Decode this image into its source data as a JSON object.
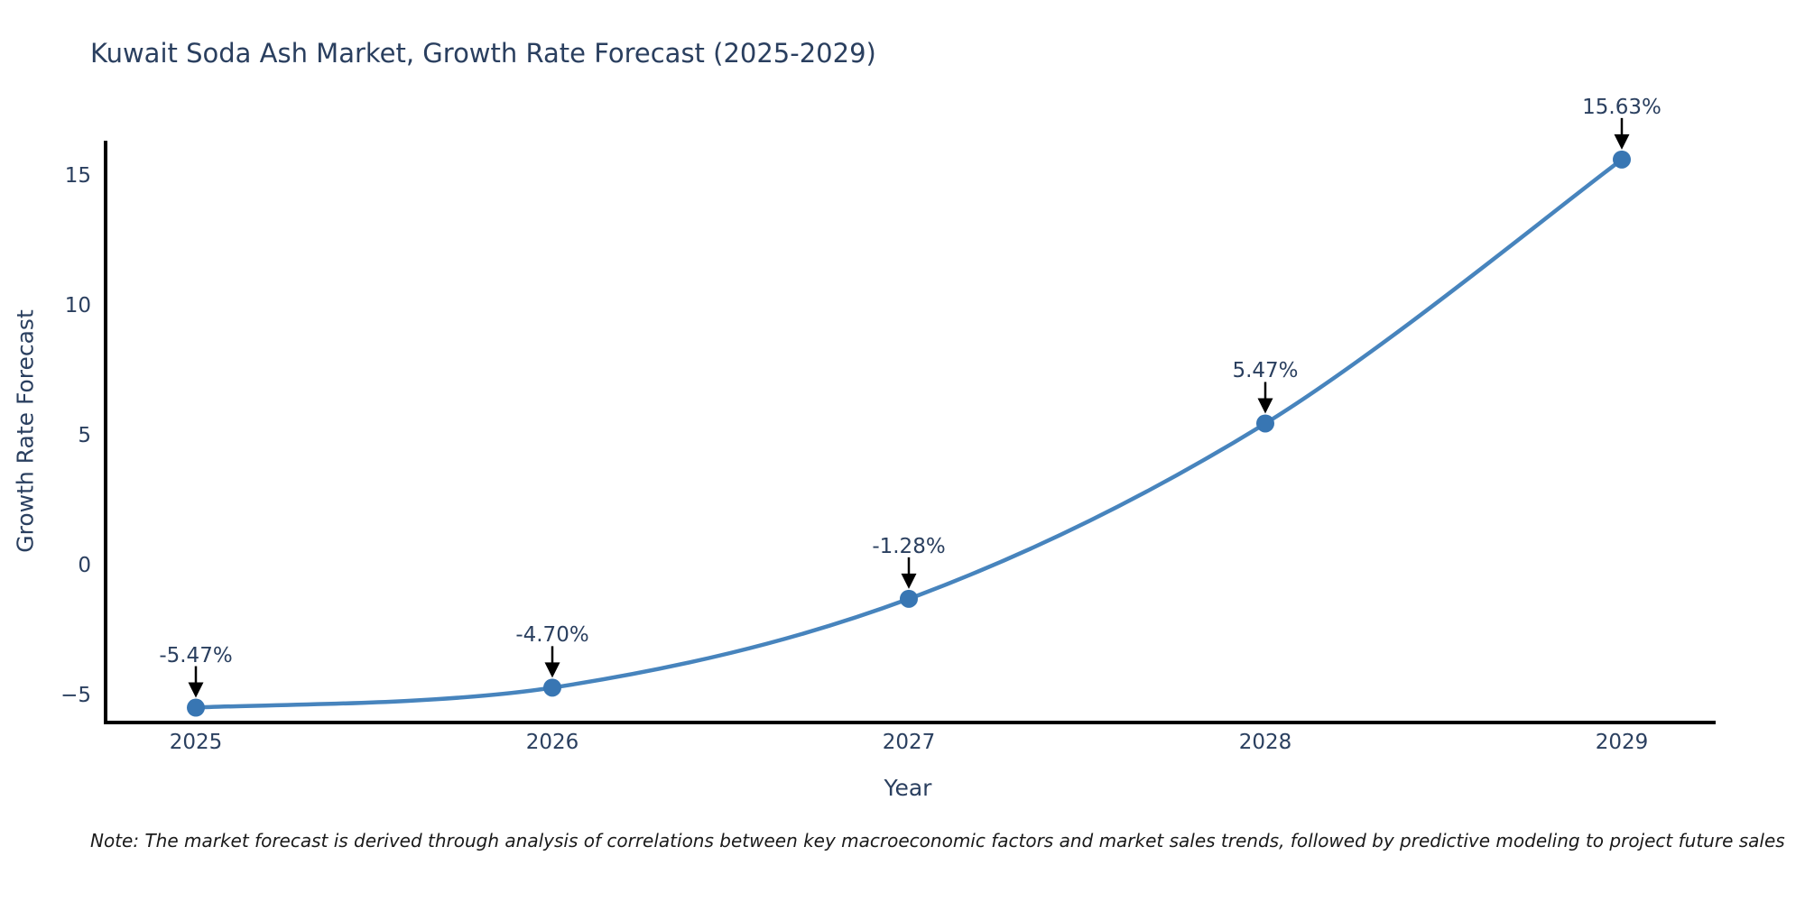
{
  "page": {
    "background": "#ffffff"
  },
  "chart_data": {
    "type": "line",
    "title": "Kuwait Soda Ash Market, Growth Rate Forecast (2025-2029)",
    "xlabel": "Year",
    "ylabel": "Growth Rate Forecast",
    "categories": [
      "2025",
      "2026",
      "2027",
      "2028",
      "2029"
    ],
    "series": [
      {
        "name": "Growth Rate Forecast",
        "values": [
          -5.47,
          -4.7,
          -1.28,
          5.47,
          15.63
        ]
      }
    ],
    "point_labels": [
      "-5.47%",
      "-4.70%",
      "-1.28%",
      "5.47%",
      "15.63%"
    ],
    "yticks": [
      15,
      10,
      5,
      0,
      -5
    ],
    "ytick_labels": [
      "15",
      "10",
      "5",
      "0",
      "−5"
    ],
    "ylim": [
      -6.1,
      16.5
    ],
    "xlim": [
      2024.73,
      2029.26
    ],
    "grid": false,
    "legend_position": "none",
    "line_shape": "spline",
    "annotations_have_arrows": true,
    "colors": {
      "line": "#4784bd",
      "marker": "#3876b3",
      "axis": "#000000",
      "text": "#2a3f5f",
      "arrow": "#000000"
    },
    "note": "Note: The market forecast is derived through analysis of correlations between key macroeconomic factors and market sales trends, followed by predictive modeling to project future sales"
  }
}
